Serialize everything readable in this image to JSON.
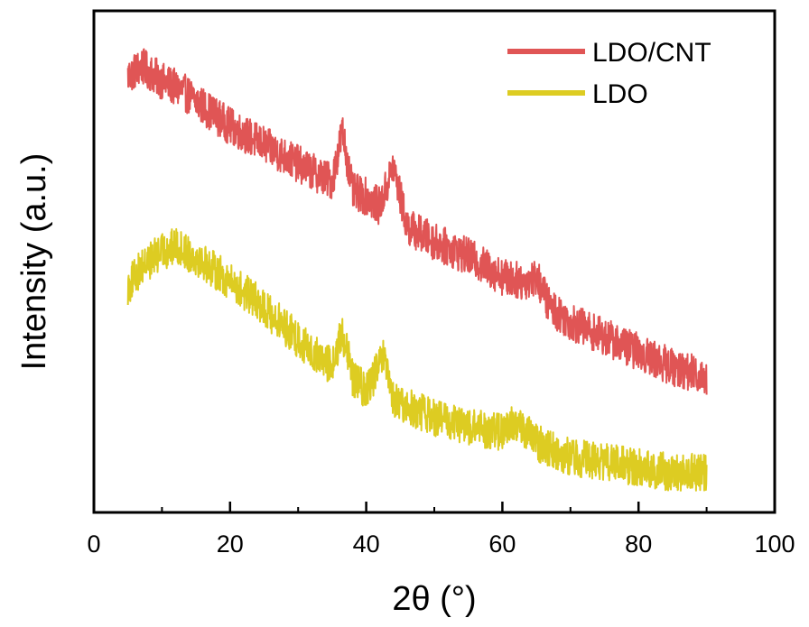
{
  "chart_data": {
    "type": "line",
    "xlabel": "2θ (°)",
    "ylabel": "Intensity (a.u.)",
    "xlim": [
      0,
      100
    ],
    "ylim": [
      0,
      1
    ],
    "y_ticks_shown": false,
    "grid": false,
    "legend_position": "top-right",
    "x_ticks": [
      0,
      20,
      40,
      60,
      80,
      100
    ],
    "x_tick_labels": [
      "0",
      "20",
      "40",
      "60",
      "80",
      "100"
    ],
    "series": [
      {
        "name": "LDO/CNT",
        "color": "#e05555",
        "x": [
          5,
          7,
          10,
          13,
          16,
          20,
          24,
          28,
          32,
          35,
          36.5,
          38,
          40,
          42,
          44,
          46,
          50,
          55,
          60,
          63,
          65,
          67,
          70,
          75,
          80,
          85,
          90
        ],
        "y": [
          0.87,
          0.89,
          0.86,
          0.84,
          0.81,
          0.77,
          0.74,
          0.71,
          0.68,
          0.66,
          0.76,
          0.64,
          0.63,
          0.61,
          0.69,
          0.57,
          0.54,
          0.51,
          0.47,
          0.46,
          0.47,
          0.41,
          0.38,
          0.35,
          0.32,
          0.29,
          0.27
        ]
      },
      {
        "name": "LDO",
        "color": "#ddcc22",
        "x": [
          5,
          7,
          10,
          12,
          15,
          20,
          24,
          28,
          32,
          35,
          36.5,
          38,
          40,
          42.5,
          44,
          46,
          50,
          55,
          60,
          62,
          65,
          70,
          75,
          80,
          85,
          90
        ],
        "y": [
          0.45,
          0.49,
          0.52,
          0.53,
          0.51,
          0.46,
          0.42,
          0.37,
          0.32,
          0.29,
          0.36,
          0.27,
          0.24,
          0.31,
          0.22,
          0.21,
          0.19,
          0.17,
          0.16,
          0.18,
          0.14,
          0.11,
          0.1,
          0.09,
          0.08,
          0.08
        ]
      }
    ]
  }
}
